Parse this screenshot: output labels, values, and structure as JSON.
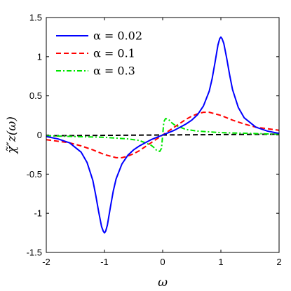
{
  "chart_data": {
    "type": "line",
    "xlabel": "ω",
    "ylabel": "χ̃″z(ω)",
    "xlim": [
      -2,
      2
    ],
    "ylim": [
      -1.5,
      1.5
    ],
    "xticks": [
      "-2",
      "-1",
      "0",
      "1",
      "2"
    ],
    "yticks": [
      "-1.5",
      "-1",
      "-0.5",
      "0",
      "0.5",
      "1",
      "1.5"
    ],
    "legend_position": "top-left",
    "grid": false,
    "series": [
      {
        "name": "α = 0.02",
        "color": "#0000ff",
        "style": "solid",
        "x": [
          -2.0,
          -1.8,
          -1.6,
          -1.4,
          -1.3,
          -1.2,
          -1.15,
          -1.1,
          -1.05,
          -1.02,
          -1.0,
          -0.98,
          -0.95,
          -0.9,
          -0.85,
          -0.8,
          -0.7,
          -0.6,
          -0.5,
          -0.4,
          -0.3,
          -0.2,
          -0.1,
          0.0,
          0.1,
          0.2,
          0.3,
          0.4,
          0.5,
          0.6,
          0.7,
          0.8,
          0.85,
          0.9,
          0.95,
          0.98,
          1.0,
          1.02,
          1.05,
          1.1,
          1.15,
          1.2,
          1.3,
          1.4,
          1.6,
          1.8,
          2.0
        ],
        "y": [
          -0.02,
          -0.05,
          -0.1,
          -0.22,
          -0.35,
          -0.58,
          -0.77,
          -0.98,
          -1.17,
          -1.23,
          -1.25,
          -1.23,
          -1.15,
          -0.93,
          -0.72,
          -0.56,
          -0.37,
          -0.26,
          -0.19,
          -0.14,
          -0.1,
          -0.06,
          -0.03,
          0.0,
          0.03,
          0.06,
          0.1,
          0.14,
          0.19,
          0.26,
          0.37,
          0.56,
          0.72,
          0.93,
          1.15,
          1.23,
          1.25,
          1.23,
          1.17,
          0.98,
          0.77,
          0.58,
          0.35,
          0.22,
          0.1,
          0.05,
          0.02
        ]
      },
      {
        "name": "α = 0.1",
        "color": "#ff0000",
        "style": "dashed",
        "x": [
          -2.0,
          -1.8,
          -1.6,
          -1.4,
          -1.2,
          -1.0,
          -0.9,
          -0.8,
          -0.7,
          -0.6,
          -0.5,
          -0.4,
          -0.3,
          -0.2,
          -0.1,
          0.0,
          0.1,
          0.2,
          0.3,
          0.4,
          0.5,
          0.6,
          0.7,
          0.8,
          0.9,
          1.0,
          1.2,
          1.4,
          1.6,
          1.8,
          2.0
        ],
        "y": [
          -0.06,
          -0.08,
          -0.1,
          -0.14,
          -0.19,
          -0.25,
          -0.27,
          -0.29,
          -0.29,
          -0.27,
          -0.24,
          -0.2,
          -0.15,
          -0.1,
          -0.05,
          0.0,
          0.05,
          0.1,
          0.15,
          0.2,
          0.24,
          0.27,
          0.29,
          0.29,
          0.27,
          0.25,
          0.19,
          0.14,
          0.1,
          0.08,
          0.06
        ]
      },
      {
        "name": "α = 0.3",
        "color": "#00e600",
        "style": "dashdot",
        "x": [
          -2.0,
          -1.5,
          -1.0,
          -0.6,
          -0.4,
          -0.3,
          -0.2,
          -0.15,
          -0.1,
          -0.05,
          -0.02,
          0.0,
          0.02,
          0.05,
          0.1,
          0.15,
          0.2,
          0.3,
          0.4,
          0.6,
          1.0,
          1.5,
          2.0
        ],
        "y": [
          -0.01,
          -0.02,
          -0.03,
          -0.05,
          -0.07,
          -0.1,
          -0.13,
          -0.16,
          -0.2,
          -0.21,
          -0.17,
          0.0,
          0.17,
          0.21,
          0.2,
          0.16,
          0.13,
          0.1,
          0.07,
          0.05,
          0.03,
          0.02,
          0.01
        ]
      },
      {
        "name": "",
        "color": "#000000",
        "style": "dashed",
        "x": [
          -2,
          2
        ],
        "y": [
          -0.01,
          0.01
        ]
      }
    ]
  }
}
